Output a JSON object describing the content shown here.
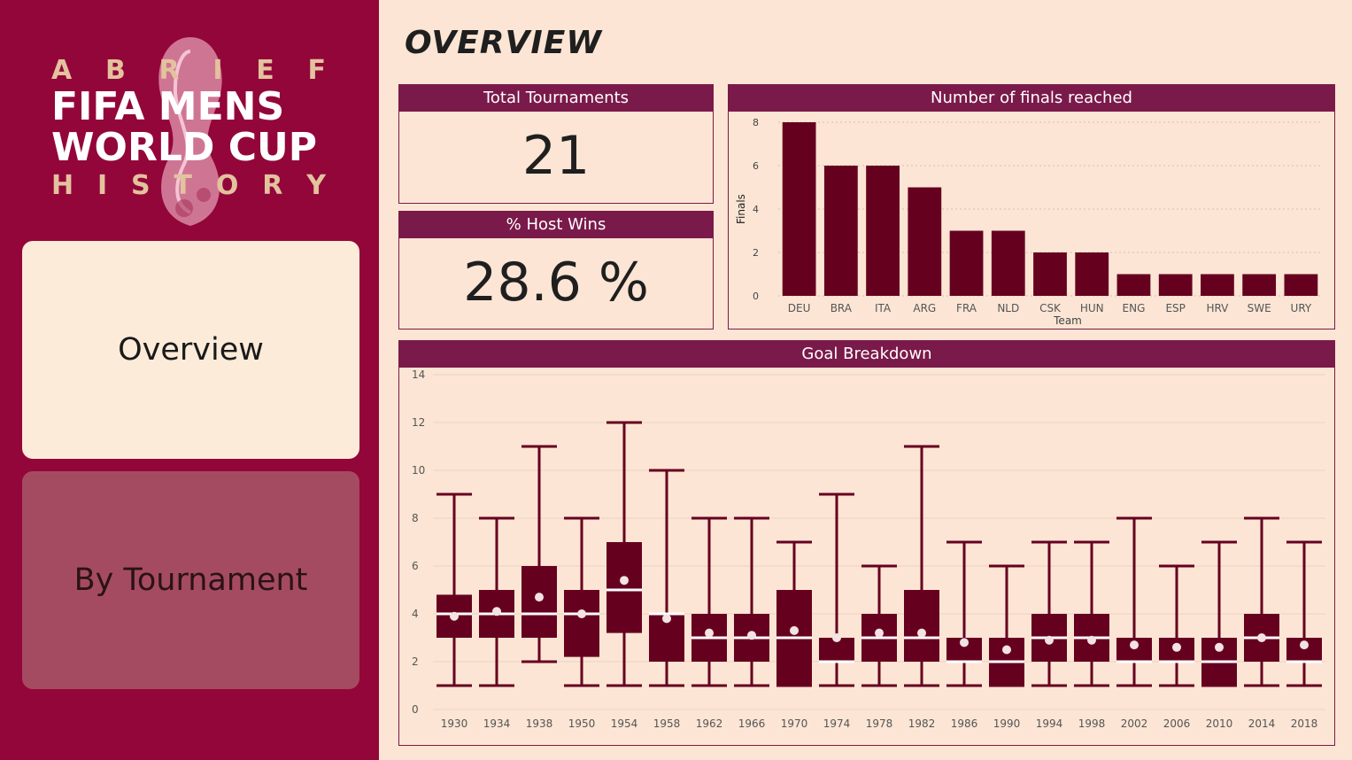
{
  "sidebar": {
    "logo": {
      "line1": [
        "A",
        "B",
        "R",
        "I",
        "E",
        "F"
      ],
      "line2": "FIFA MENS",
      "line3": "WORLD CUP",
      "line4": [
        "H",
        "I",
        "S",
        "T",
        "O",
        "R",
        "Y"
      ]
    },
    "nav": [
      {
        "label": "Overview"
      },
      {
        "label": "By Tournament"
      }
    ]
  },
  "page": {
    "title": "OVERVIEW"
  },
  "kpis": {
    "total_tournaments": {
      "title": "Total Tournaments",
      "value": "21"
    },
    "host_wins": {
      "title": "% Host Wins",
      "value": "28.6 %"
    }
  },
  "colors": {
    "sidebar_bg": "#93063a",
    "page_bg": "#fce5d4",
    "header_bg": "#7a1a4a",
    "bar": "#66001f",
    "accent_text": "#e3c29e"
  },
  "chart_data": [
    {
      "type": "bar",
      "title": "Number of finals reached",
      "xlabel": "Team",
      "ylabel": "Finals",
      "ylim": [
        0,
        8
      ],
      "yticks": [
        "0",
        "2",
        "4",
        "6",
        "8"
      ],
      "grid": true,
      "categories": [
        "DEU",
        "BRA",
        "ITA",
        "ARG",
        "FRA",
        "NLD",
        "CSK",
        "HUN",
        "ENG",
        "ESP",
        "HRV",
        "SWE",
        "URY"
      ],
      "values": [
        8,
        6,
        6,
        5,
        3,
        3,
        2,
        2,
        1,
        1,
        1,
        1,
        1
      ]
    },
    {
      "type": "boxplot",
      "title": "Goal Breakdown",
      "ylim": [
        0,
        14
      ],
      "yticks": [
        "0",
        "2",
        "4",
        "6",
        "8",
        "10",
        "12",
        "14"
      ],
      "grid": true,
      "categories": [
        "1930",
        "1934",
        "1938",
        "1950",
        "1954",
        "1958",
        "1962",
        "1966",
        "1970",
        "1974",
        "1978",
        "1982",
        "1986",
        "1990",
        "1994",
        "1998",
        "2002",
        "2006",
        "2010",
        "2014",
        "2018"
      ],
      "boxes": [
        {
          "min": 1,
          "q1": 3,
          "median": 4,
          "q3": 4.8,
          "max": 9,
          "mean": 3.9
        },
        {
          "min": 1,
          "q1": 3,
          "median": 4,
          "q3": 5,
          "max": 8,
          "mean": 4.1
        },
        {
          "min": 2,
          "q1": 3,
          "median": 4,
          "q3": 6,
          "max": 11,
          "mean": 4.7
        },
        {
          "min": 1,
          "q1": 2.2,
          "median": 4,
          "q3": 5,
          "max": 8,
          "mean": 4
        },
        {
          "min": 1,
          "q1": 3.2,
          "median": 5,
          "q3": 7,
          "max": 12,
          "mean": 5.4
        },
        {
          "min": 1,
          "q1": 2,
          "median": 4,
          "q3": 4,
          "max": 10,
          "mean": 3.8
        },
        {
          "min": 1,
          "q1": 2,
          "median": 3,
          "q3": 4,
          "max": 8,
          "mean": 3.2
        },
        {
          "min": 1,
          "q1": 2,
          "median": 3,
          "q3": 4,
          "max": 8,
          "mean": 3.1
        },
        {
          "min": 1,
          "q1": 1,
          "median": 3,
          "q3": 5,
          "max": 7,
          "mean": 3.3
        },
        {
          "min": 1,
          "q1": 2,
          "median": 2,
          "q3": 3,
          "max": 9,
          "mean": 3
        },
        {
          "min": 1,
          "q1": 2,
          "median": 3,
          "q3": 4,
          "max": 6,
          "mean": 3.2
        },
        {
          "min": 1,
          "q1": 2,
          "median": 3,
          "q3": 5,
          "max": 11,
          "mean": 3.2
        },
        {
          "min": 1,
          "q1": 2,
          "median": 2,
          "q3": 3,
          "max": 7,
          "mean": 2.8
        },
        {
          "min": 1,
          "q1": 1,
          "median": 2,
          "q3": 3,
          "max": 6,
          "mean": 2.5
        },
        {
          "min": 1,
          "q1": 2,
          "median": 3,
          "q3": 4,
          "max": 7,
          "mean": 2.9
        },
        {
          "min": 1,
          "q1": 2,
          "median": 3,
          "q3": 4,
          "max": 7,
          "mean": 2.9
        },
        {
          "min": 1,
          "q1": 2,
          "median": 2,
          "q3": 3,
          "max": 8,
          "mean": 2.7
        },
        {
          "min": 1,
          "q1": 2,
          "median": 2,
          "q3": 3,
          "max": 6,
          "mean": 2.6
        },
        {
          "min": 1,
          "q1": 1,
          "median": 2,
          "q3": 3,
          "max": 7,
          "mean": 2.6
        },
        {
          "min": 1,
          "q1": 2,
          "median": 3,
          "q3": 4,
          "max": 8,
          "mean": 3
        },
        {
          "min": 1,
          "q1": 2,
          "median": 2,
          "q3": 3,
          "max": 7,
          "mean": 2.7
        }
      ]
    }
  ]
}
